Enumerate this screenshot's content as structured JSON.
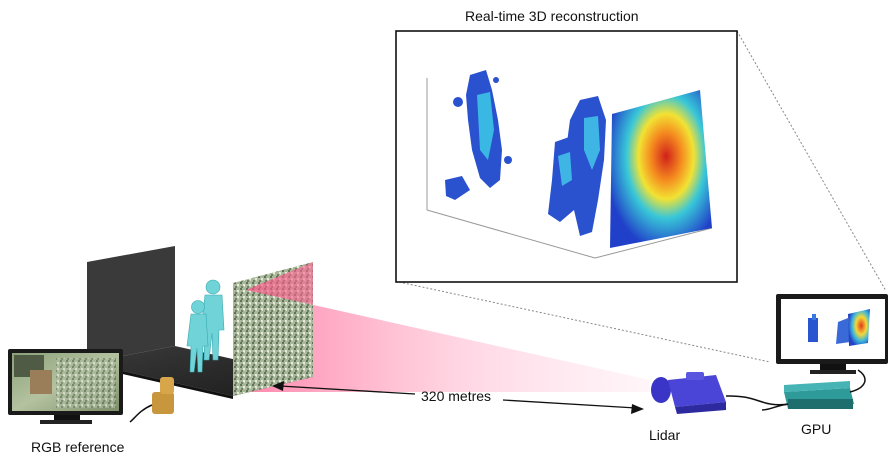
{
  "title": "Real-time 3D reconstruction",
  "distance_label": "320 metres",
  "lidar_label": "Lidar",
  "gpu_label": "GPU",
  "rgb_label": "RGB reference",
  "colors": {
    "figure": "#6fd3d8",
    "beam": "#ff5a8c",
    "lidar": "#4a45d6",
    "gpu": "#2a8a8a",
    "camera": "#c8963c",
    "wall": "#333333"
  }
}
